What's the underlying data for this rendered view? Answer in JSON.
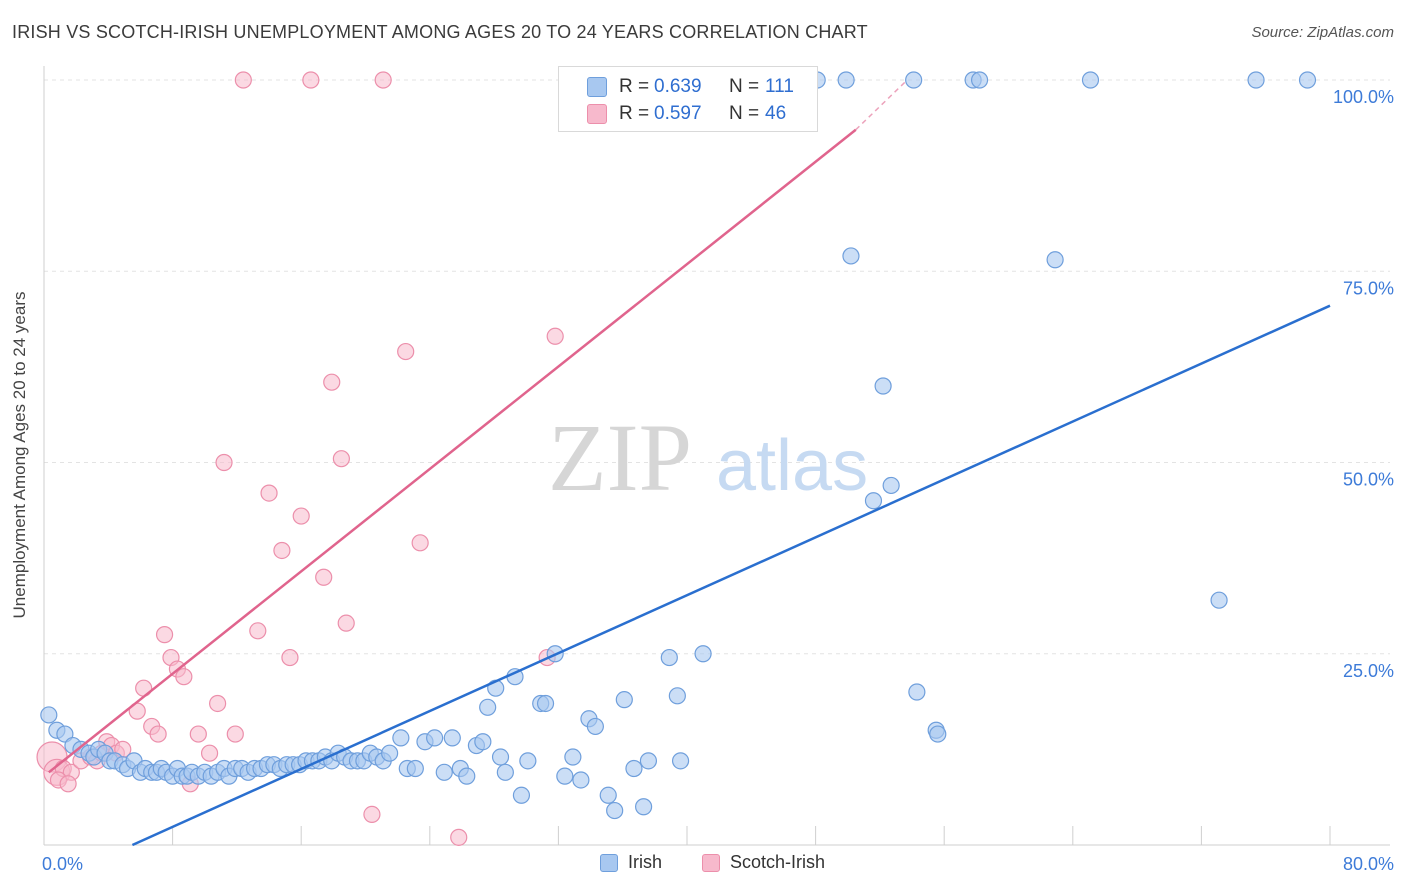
{
  "header": {
    "title": "IRISH VS SCOTCH-IRISH UNEMPLOYMENT AMONG AGES 20 TO 24 YEARS CORRELATION CHART",
    "source": "Source: ZipAtlas.com"
  },
  "watermark": {
    "zip": "ZIP",
    "atlas": "atlas"
  },
  "legend_box": {
    "irish": {
      "r_label": "R =",
      "r_value": "0.639",
      "n_label": "N =",
      "n_value": "111"
    },
    "scotch": {
      "r_label": "R =",
      "r_value": "0.597",
      "n_label": "N =",
      "n_value": "46"
    }
  },
  "legend_bottom": {
    "irish": "Irish",
    "scotch": "Scotch-Irish"
  },
  "colors": {
    "irish_fill": "#a8c8f0",
    "irish_stroke": "#6f9fdc",
    "irish_line": "#2a6fcf",
    "scotch_fill": "#f7b9cc",
    "scotch_stroke": "#ec8fab",
    "scotch_line": "#e0648d",
    "axis_text": "#3d7bd8",
    "grid": "#e3e3e3"
  },
  "chart_data": {
    "type": "scatter",
    "title": "IRISH VS SCOTCH-IRISH UNEMPLOYMENT AMONG AGES 20 TO 24 YEARS CORRELATION CHART",
    "xlabel": "",
    "ylabel": "Unemployment Among Ages 20 to 24 years",
    "xlim": [
      0,
      80
    ],
    "ylim": [
      0,
      100
    ],
    "x_tick_labels": [
      "0.0%",
      "80.0%"
    ],
    "y_tick_labels": [
      "25.0%",
      "50.0%",
      "75.0%",
      "100.0%"
    ],
    "y_ticks": [
      25,
      50,
      75,
      100
    ],
    "grid": true,
    "legend_placement": "top-center",
    "series": [
      {
        "name": "Irish",
        "r": 0.639,
        "n": 111,
        "trend": [
          [
            5.5,
            0
          ],
          [
            80,
            70.5
          ]
        ],
        "points": [
          [
            0.3,
            17
          ],
          [
            0.8,
            15
          ],
          [
            1.3,
            14.5
          ],
          [
            1.8,
            13
          ],
          [
            2.3,
            12.5
          ],
          [
            2.8,
            12
          ],
          [
            3.1,
            11.5
          ],
          [
            3.4,
            12.5
          ],
          [
            3.8,
            12
          ],
          [
            4.1,
            11
          ],
          [
            4.4,
            11
          ],
          [
            4.9,
            10.5
          ],
          [
            5.2,
            10
          ],
          [
            5.6,
            11
          ],
          [
            6.0,
            9.5
          ],
          [
            6.3,
            10
          ],
          [
            6.7,
            9.5
          ],
          [
            7.0,
            9.5
          ],
          [
            7.3,
            10
          ],
          [
            7.6,
            9.5
          ],
          [
            8.0,
            9
          ],
          [
            8.3,
            10
          ],
          [
            8.6,
            9
          ],
          [
            8.9,
            9
          ],
          [
            9.2,
            9.5
          ],
          [
            9.6,
            9
          ],
          [
            10.0,
            9.5
          ],
          [
            10.4,
            9
          ],
          [
            10.8,
            9.5
          ],
          [
            11.2,
            10
          ],
          [
            11.5,
            9
          ],
          [
            11.9,
            10
          ],
          [
            12.3,
            10
          ],
          [
            12.7,
            9.5
          ],
          [
            13.1,
            10
          ],
          [
            13.5,
            10
          ],
          [
            13.9,
            10.5
          ],
          [
            14.3,
            10.5
          ],
          [
            14.7,
            10
          ],
          [
            15.1,
            10.5
          ],
          [
            15.5,
            10.5
          ],
          [
            15.9,
            10.5
          ],
          [
            16.3,
            11
          ],
          [
            16.7,
            11
          ],
          [
            17.1,
            11
          ],
          [
            17.5,
            11.5
          ],
          [
            17.9,
            11
          ],
          [
            18.3,
            12
          ],
          [
            18.7,
            11.5
          ],
          [
            19.1,
            11
          ],
          [
            19.5,
            11
          ],
          [
            19.9,
            11
          ],
          [
            20.3,
            12
          ],
          [
            20.7,
            11.5
          ],
          [
            21.1,
            11
          ],
          [
            21.5,
            12
          ],
          [
            22.2,
            14
          ],
          [
            22.6,
            10
          ],
          [
            23.1,
            10
          ],
          [
            23.7,
            13.5
          ],
          [
            24.3,
            14
          ],
          [
            24.9,
            9.5
          ],
          [
            25.4,
            14
          ],
          [
            25.9,
            10
          ],
          [
            26.3,
            9
          ],
          [
            26.9,
            13
          ],
          [
            27.3,
            13.5
          ],
          [
            27.6,
            18
          ],
          [
            28.1,
            20.5
          ],
          [
            28.4,
            11.5
          ],
          [
            28.7,
            9.5
          ],
          [
            29.3,
            22
          ],
          [
            29.7,
            6.5
          ],
          [
            30.1,
            11
          ],
          [
            30.9,
            18.5
          ],
          [
            31.2,
            18.5
          ],
          [
            31.8,
            25
          ],
          [
            32.4,
            9
          ],
          [
            32.9,
            11.5
          ],
          [
            33.4,
            8.5
          ],
          [
            33.9,
            16.5
          ],
          [
            34.3,
            15.5
          ],
          [
            35.1,
            6.5
          ],
          [
            35.5,
            4.5
          ],
          [
            36.1,
            19
          ],
          [
            36.7,
            10
          ],
          [
            37.3,
            5
          ],
          [
            37.6,
            11
          ],
          [
            38.9,
            24.5
          ],
          [
            39.4,
            19.5
          ],
          [
            39.6,
            11
          ],
          [
            41.0,
            25
          ],
          [
            47.5,
            100
          ],
          [
            47.6,
            100
          ],
          [
            48.1,
            100
          ],
          [
            49.9,
            100
          ],
          [
            50.2,
            77
          ],
          [
            51.6,
            45
          ],
          [
            52.2,
            60
          ],
          [
            52.7,
            47
          ],
          [
            54.1,
            100
          ],
          [
            54.3,
            20
          ],
          [
            55.5,
            15
          ],
          [
            55.6,
            14.5
          ],
          [
            57.8,
            100
          ],
          [
            58.2,
            100
          ],
          [
            62.9,
            76.5
          ],
          [
            65.1,
            100
          ],
          [
            73.1,
            32
          ],
          [
            75.4,
            100
          ],
          [
            78.6,
            100
          ]
        ]
      },
      {
        "name": "Scotch-Irish",
        "r": 0.597,
        "n": 46,
        "trend": [
          [
            0.3,
            9.5
          ],
          [
            50.5,
            93.5
          ]
        ],
        "trend_dashed": [
          [
            50.5,
            93.5
          ],
          [
            53.7,
            100
          ]
        ],
        "points": [
          [
            0.5,
            11.5
          ],
          [
            0.8,
            9.5
          ],
          [
            1.2,
            10
          ],
          [
            1.7,
            9.5
          ],
          [
            2.3,
            11
          ],
          [
            2.9,
            11.5
          ],
          [
            3.3,
            11
          ],
          [
            3.6,
            12
          ],
          [
            3.9,
            13.5
          ],
          [
            4.2,
            13
          ],
          [
            4.5,
            12
          ],
          [
            4.9,
            12.5
          ],
          [
            5.8,
            17.5
          ],
          [
            6.2,
            20.5
          ],
          [
            6.7,
            15.5
          ],
          [
            7.1,
            14.5
          ],
          [
            7.5,
            27.5
          ],
          [
            7.9,
            24.5
          ],
          [
            8.3,
            23
          ],
          [
            8.7,
            22
          ],
          [
            9.1,
            8
          ],
          [
            9.6,
            14.5
          ],
          [
            10.3,
            12
          ],
          [
            10.8,
            18.5
          ],
          [
            11.2,
            50
          ],
          [
            11.9,
            14.5
          ],
          [
            12.4,
            100
          ],
          [
            13.3,
            28
          ],
          [
            14.0,
            46
          ],
          [
            14.8,
            38.5
          ],
          [
            15.3,
            24.5
          ],
          [
            16.0,
            43
          ],
          [
            16.6,
            100
          ],
          [
            17.4,
            35
          ],
          [
            17.9,
            60.5
          ],
          [
            18.5,
            50.5
          ],
          [
            18.8,
            29
          ],
          [
            20.4,
            4
          ],
          [
            21.1,
            100
          ],
          [
            22.5,
            64.5
          ],
          [
            23.4,
            39.5
          ],
          [
            25.8,
            1
          ],
          [
            31.3,
            24.5
          ],
          [
            31.8,
            66.5
          ],
          [
            0.9,
            8.5
          ],
          [
            1.5,
            8
          ]
        ]
      }
    ]
  }
}
